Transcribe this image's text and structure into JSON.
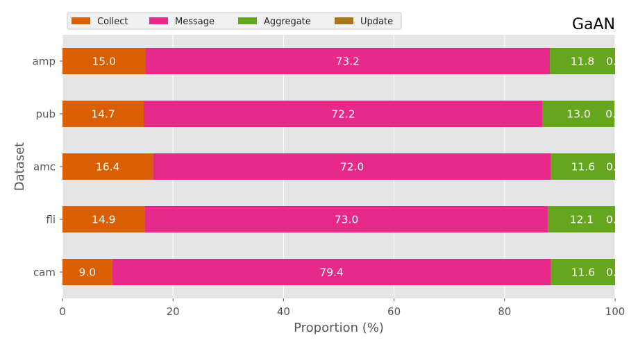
{
  "chart_data": {
    "type": "bar",
    "orientation": "horizontal",
    "stacked": true,
    "title": "GaAN",
    "xlabel": "Proportion (%)",
    "ylabel": "Dataset",
    "xlim": [
      0,
      100
    ],
    "xticks": [
      "0",
      "20",
      "40",
      "60",
      "80",
      "100"
    ],
    "categories": [
      "amp",
      "pub",
      "amc",
      "fli",
      "cam"
    ],
    "series": [
      {
        "name": "Collect",
        "color": "#d95f02",
        "values": [
          15.0,
          14.7,
          16.4,
          14.9,
          9.0
        ],
        "labels": [
          "15.0",
          "14.7",
          "16.4",
          "14.9",
          "9.0"
        ]
      },
      {
        "name": "Message",
        "color": "#e7298a",
        "values": [
          73.2,
          72.2,
          72.0,
          73.0,
          79.4
        ],
        "labels": [
          "73.2",
          "72.2",
          "72.0",
          "73.0",
          "79.4"
        ]
      },
      {
        "name": "Aggregate",
        "color": "#66a61e",
        "values": [
          11.8,
          13.0,
          11.6,
          12.1,
          11.6
        ],
        "labels": [
          "11.8",
          "13.0",
          "11.6",
          "12.1",
          "11.6"
        ]
      },
      {
        "name": "Update",
        "color": "#a6761d",
        "values": [
          0.0,
          0.0,
          0.0,
          0.0,
          0.0
        ],
        "labels": [
          "0.",
          "0.",
          "0.",
          "0.",
          "0."
        ]
      }
    ],
    "grid": true,
    "legend_position": "top-left",
    "plot_background": "#e5e5e5"
  }
}
